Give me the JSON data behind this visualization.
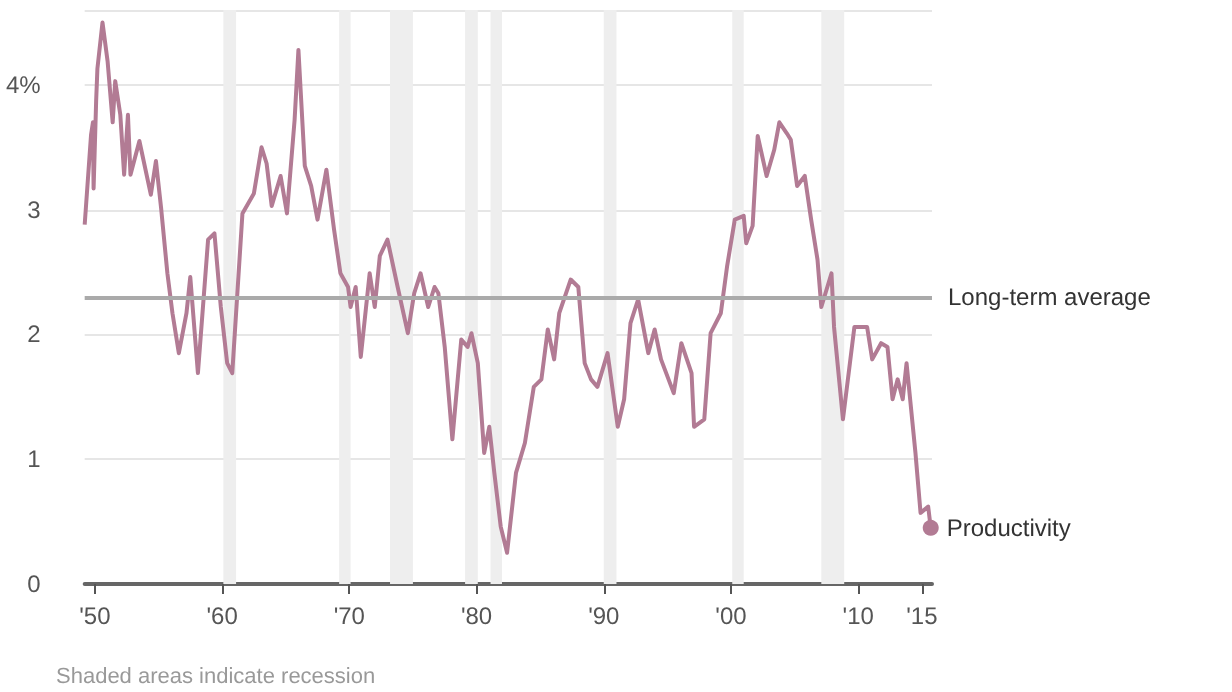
{
  "chart_data": {
    "type": "line",
    "x": [
      1949.2,
      1949.7,
      1949.85,
      1949.9,
      1950.1,
      1950.2,
      1950.6,
      1951.0,
      1951.4,
      1951.6,
      1952.0,
      1952.3,
      1952.6,
      1952.8,
      1953.5,
      1954.4,
      1954.8,
      1955.2,
      1955.7,
      1956.1,
      1956.6,
      1957.2,
      1957.5,
      1958.1,
      1958.9,
      1959.4,
      1959.9,
      1960.4,
      1960.8,
      1961.6,
      1962.5,
      1963.1,
      1963.5,
      1963.9,
      1964.6,
      1965.1,
      1965.7,
      1966.0,
      1966.5,
      1967.0,
      1967.5,
      1968.2,
      1968.8,
      1969.3,
      1969.9,
      1970.1,
      1970.5,
      1970.9,
      1971.6,
      1972.0,
      1972.4,
      1973.0,
      1973.8,
      1974.6,
      1975.1,
      1975.6,
      1976.2,
      1976.7,
      1977.0,
      1977.5,
      1978.1,
      1978.8,
      1979.3,
      1979.6,
      1980.1,
      1980.6,
      1981.0,
      1981.4,
      1981.9,
      1982.4,
      1983.1,
      1983.8,
      1984.5,
      1985.1,
      1985.6,
      1986.1,
      1986.5,
      1987.4,
      1988.0,
      1988.5,
      1989.0,
      1989.5,
      1990.3,
      1991.1,
      1991.6,
      1992.1,
      1992.7,
      1993.5,
      1994.0,
      1994.5,
      1995.5,
      1996.1,
      1996.9,
      1997.1,
      1997.9,
      1998.4,
      1999.2,
      1999.7,
      2000.3,
      2001.0,
      2001.2,
      2001.7,
      2002.1,
      2002.8,
      2003.4,
      2003.8,
      2004.4,
      2004.7,
      2005.2,
      2005.8,
      2006.3,
      2006.8,
      2007.1,
      2007.9,
      2008.1,
      2008.8,
      2009.7,
      2010.7,
      2011.1,
      2011.8,
      2012.3,
      2012.7,
      2013.1,
      2013.5,
      2013.8,
      2014.5,
      2014.9,
      2015.5,
      2015.7
    ],
    "series": [
      {
        "name": "Productivity",
        "color": "#b27b94",
        "values": [
          2.88,
          3.6,
          3.7,
          3.17,
          3.87,
          4.13,
          4.5,
          4.19,
          3.7,
          4.03,
          3.76,
          3.28,
          3.76,
          3.28,
          3.55,
          3.12,
          3.39,
          3.02,
          2.49,
          2.17,
          1.85,
          2.17,
          2.46,
          1.69,
          2.76,
          2.81,
          2.22,
          1.77,
          1.69,
          2.97,
          3.13,
          3.5,
          3.37,
          3.03,
          3.27,
          2.97,
          3.72,
          4.28,
          3.35,
          3.19,
          2.92,
          3.32,
          2.84,
          2.49,
          2.38,
          2.22,
          2.38,
          1.82,
          2.49,
          2.22,
          2.63,
          2.76,
          2.38,
          2.01,
          2.33,
          2.49,
          2.22,
          2.38,
          2.33,
          1.9,
          1.16,
          1.96,
          1.9,
          2.01,
          1.77,
          1.05,
          1.26,
          0.89,
          0.46,
          0.25,
          0.89,
          1.13,
          1.58,
          1.64,
          2.04,
          1.8,
          2.17,
          2.44,
          2.38,
          1.77,
          1.64,
          1.58,
          1.85,
          1.26,
          1.48,
          2.09,
          2.28,
          1.85,
          2.04,
          1.8,
          1.53,
          1.93,
          1.69,
          1.26,
          1.32,
          2.01,
          2.17,
          2.55,
          2.92,
          2.95,
          2.73,
          2.87,
          3.59,
          3.27,
          3.48,
          3.7,
          3.61,
          3.56,
          3.19,
          3.27,
          2.92,
          2.6,
          2.22,
          2.49,
          2.06,
          1.32,
          2.06,
          2.06,
          1.8,
          1.93,
          1.9,
          1.48,
          1.64,
          1.48,
          1.77,
          1.05,
          0.57,
          0.62,
          0.45
        ]
      }
    ],
    "xlim": [
      1949.2,
      2015.8
    ],
    "xticks": [
      {
        "value": 1950,
        "label": "'50"
      },
      {
        "value": 1960,
        "label": "'60"
      },
      {
        "value": 1970,
        "label": "'70"
      },
      {
        "value": 1980,
        "label": "'80"
      },
      {
        "value": 1990,
        "label": "'90"
      },
      {
        "value": 2000,
        "label": "'00"
      },
      {
        "value": 2010,
        "label": "'10"
      },
      {
        "value": 2015,
        "label": "'15"
      }
    ],
    "ylim": [
      0,
      4.6
    ],
    "yticks": [
      0,
      1,
      2,
      3,
      {
        "value": 4,
        "label": "4%"
      }
    ],
    "grid": "y",
    "legend": false,
    "ref_lines": [
      {
        "axis": "y",
        "value": 2.3,
        "label": "Long-term average",
        "color": "#aaaaaa"
      }
    ],
    "bands": [
      {
        "axis": "x",
        "from": 1960.1,
        "to": 1961.1,
        "color": "#eeeeee"
      },
      {
        "axis": "x",
        "from": 1969.2,
        "to": 1970.1,
        "color": "#eeeeee"
      },
      {
        "axis": "x",
        "from": 1973.2,
        "to": 1975.0,
        "color": "#eeeeee"
      },
      {
        "axis": "x",
        "from": 1979.1,
        "to": 1980.1,
        "color": "#eeeeee"
      },
      {
        "axis": "x",
        "from": 1981.1,
        "to": 1982.0,
        "color": "#eeeeee"
      },
      {
        "axis": "x",
        "from": 1990.0,
        "to": 1991.0,
        "color": "#eeeeee"
      },
      {
        "axis": "x",
        "from": 2000.1,
        "to": 2001.0,
        "color": "#eeeeee"
      },
      {
        "axis": "x",
        "from": 2007.1,
        "to": 2008.9,
        "color": "#eeeeee"
      }
    ],
    "annotations": [
      "Shaded areas indicate recession"
    ]
  }
}
